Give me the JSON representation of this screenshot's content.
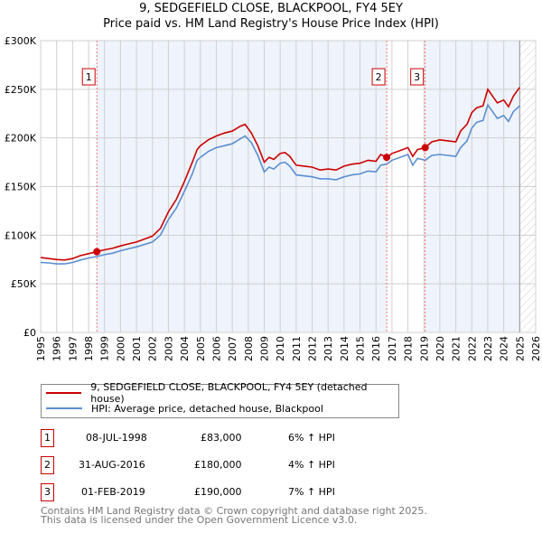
{
  "header": {
    "title": "9, SEDGEFIELD CLOSE, BLACKPOOL, FY4 5EY",
    "subtitle": "Price paid vs. HM Land Registry's House Price Index (HPI)"
  },
  "chart_data": {
    "type": "line",
    "title": "9, SEDGEFIELD CLOSE, BLACKPOOL, FY4 5EY",
    "subtitle": "Price paid vs. HM Land Registry's House Price Index (HPI)",
    "xlim": [
      1995,
      2026
    ],
    "ylim": [
      0,
      300000
    ],
    "xticks": [
      "1995",
      "1996",
      "1997",
      "1998",
      "1999",
      "2000",
      "2001",
      "2002",
      "2003",
      "2004",
      "2005",
      "2006",
      "2007",
      "2008",
      "2009",
      "2010",
      "2011",
      "2012",
      "2013",
      "2014",
      "2015",
      "2016",
      "2017",
      "2018",
      "2019",
      "2020",
      "2021",
      "2022",
      "2023",
      "2024",
      "2025",
      "2026"
    ],
    "yticks": [
      {
        "v": 0,
        "label": "£0"
      },
      {
        "v": 50000,
        "label": "£50K"
      },
      {
        "v": 100000,
        "label": "£100K"
      },
      {
        "v": 150000,
        "label": "£150K"
      },
      {
        "v": 200000,
        "label": "£200K"
      },
      {
        "v": 250000,
        "label": "£250K"
      },
      {
        "v": 300000,
        "label": "£300K"
      }
    ],
    "grid": true,
    "series": [
      {
        "name": "9, SEDGEFIELD CLOSE, BLACKPOOL, FY4 5EY (detached house)",
        "color": "#cc0000",
        "x": [
          1995,
          1995.5,
          1996,
          1996.5,
          1997,
          1997.5,
          1998,
          1998.52,
          1999,
          1999.5,
          2000,
          2000.5,
          2001,
          2001.5,
          2002,
          2002.5,
          2003,
          2003.5,
          2004,
          2004.5,
          2004.8,
          2005,
          2005.5,
          2006,
          2006.5,
          2007,
          2007.5,
          2007.8,
          2008.2,
          2008.6,
          2009,
          2009.3,
          2009.6,
          2010,
          2010.3,
          2010.6,
          2011,
          2011.5,
          2012,
          2012.5,
          2013,
          2013.5,
          2014,
          2014.5,
          2015,
          2015.5,
          2016,
          2016.3,
          2016.67,
          2017,
          2017.5,
          2018,
          2018.3,
          2018.6,
          2019.08,
          2019.5,
          2020,
          2020.5,
          2021,
          2021.3,
          2021.7,
          2022,
          2022.3,
          2022.7,
          2023,
          2023.3,
          2023.6,
          2024,
          2024.3,
          2024.6,
          2025
        ],
        "y": [
          77000,
          76000,
          75000,
          74500,
          76000,
          79000,
          81000,
          83000,
          85000,
          86500,
          89000,
          91000,
          93000,
          96000,
          99000,
          107000,
          124000,
          137000,
          155000,
          175000,
          188000,
          192000,
          198000,
          202000,
          205000,
          207000,
          212000,
          214000,
          205000,
          192000,
          175000,
          180000,
          178000,
          184000,
          185000,
          181000,
          172000,
          171000,
          170000,
          167000,
          168000,
          167000,
          171000,
          173000,
          174000,
          177000,
          176000,
          183000,
          180000,
          184000,
          187000,
          190000,
          181000,
          188000,
          190000,
          196000,
          198000,
          197000,
          196000,
          207000,
          214000,
          226000,
          231000,
          233000,
          250000,
          243000,
          236000,
          239000,
          232000,
          243000,
          252000
        ]
      },
      {
        "name": "HPI: Average price, detached house, Blackpool",
        "color": "#5b8fd0",
        "x": [
          1995,
          1995.5,
          1996,
          1996.5,
          1997,
          1997.5,
          1998,
          1998.52,
          1999,
          1999.5,
          2000,
          2000.5,
          2001,
          2001.5,
          2002,
          2002.5,
          2003,
          2003.5,
          2004,
          2004.5,
          2004.8,
          2005,
          2005.5,
          2006,
          2006.5,
          2007,
          2007.5,
          2007.8,
          2008.2,
          2008.6,
          2009,
          2009.3,
          2009.6,
          2010,
          2010.3,
          2010.6,
          2011,
          2011.5,
          2012,
          2012.5,
          2013,
          2013.5,
          2014,
          2014.5,
          2015,
          2015.5,
          2016,
          2016.3,
          2016.67,
          2017,
          2017.5,
          2018,
          2018.3,
          2018.6,
          2019.08,
          2019.5,
          2020,
          2020.5,
          2021,
          2021.3,
          2021.7,
          2022,
          2022.3,
          2022.7,
          2023,
          2023.3,
          2023.6,
          2024,
          2024.3,
          2024.6,
          2025
        ],
        "y": [
          72000,
          71500,
          70500,
          70500,
          72000,
          74500,
          76500,
          78000,
          80000,
          81500,
          84000,
          86000,
          88000,
          90500,
          93000,
          100000,
          116000,
          128000,
          145000,
          163000,
          177000,
          180000,
          186000,
          190000,
          192000,
          194000,
          199000,
          202000,
          195000,
          182000,
          165000,
          170000,
          168000,
          174000,
          175000,
          171000,
          162000,
          161000,
          160000,
          158000,
          158000,
          157000,
          160000,
          162000,
          163000,
          166000,
          165000,
          172000,
          173000,
          177000,
          180000,
          183000,
          172000,
          179000,
          177000,
          182000,
          183000,
          182000,
          181000,
          190000,
          197000,
          210000,
          216000,
          218000,
          234000,
          227000,
          220000,
          223000,
          217000,
          227000,
          233000
        ]
      }
    ],
    "sales": [
      {
        "n": "1",
        "x": 1998.52,
        "y": 83000
      },
      {
        "n": "2",
        "x": 2016.67,
        "y": 180000
      },
      {
        "n": "3",
        "x": 2019.08,
        "y": 190000
      }
    ],
    "data_end": 2025.0
  },
  "legend": {
    "items": [
      "9, SEDGEFIELD CLOSE, BLACKPOOL, FY4 5EY (detached house)",
      "HPI: Average price, detached house, Blackpool"
    ]
  },
  "table": [
    {
      "n": "1",
      "date": "08-JUL-1998",
      "price": "£83,000",
      "hpi": "6% ↑ HPI"
    },
    {
      "n": "2",
      "date": "31-AUG-2016",
      "price": "£180,000",
      "hpi": "4% ↑ HPI"
    },
    {
      "n": "3",
      "date": "01-FEB-2019",
      "price": "£190,000",
      "hpi": "7% ↑ HPI"
    }
  ],
  "footer": {
    "line1": "Contains HM Land Registry data © Crown copyright and database right 2025.",
    "line2": "This data is licensed under the Open Government Licence v3.0."
  }
}
